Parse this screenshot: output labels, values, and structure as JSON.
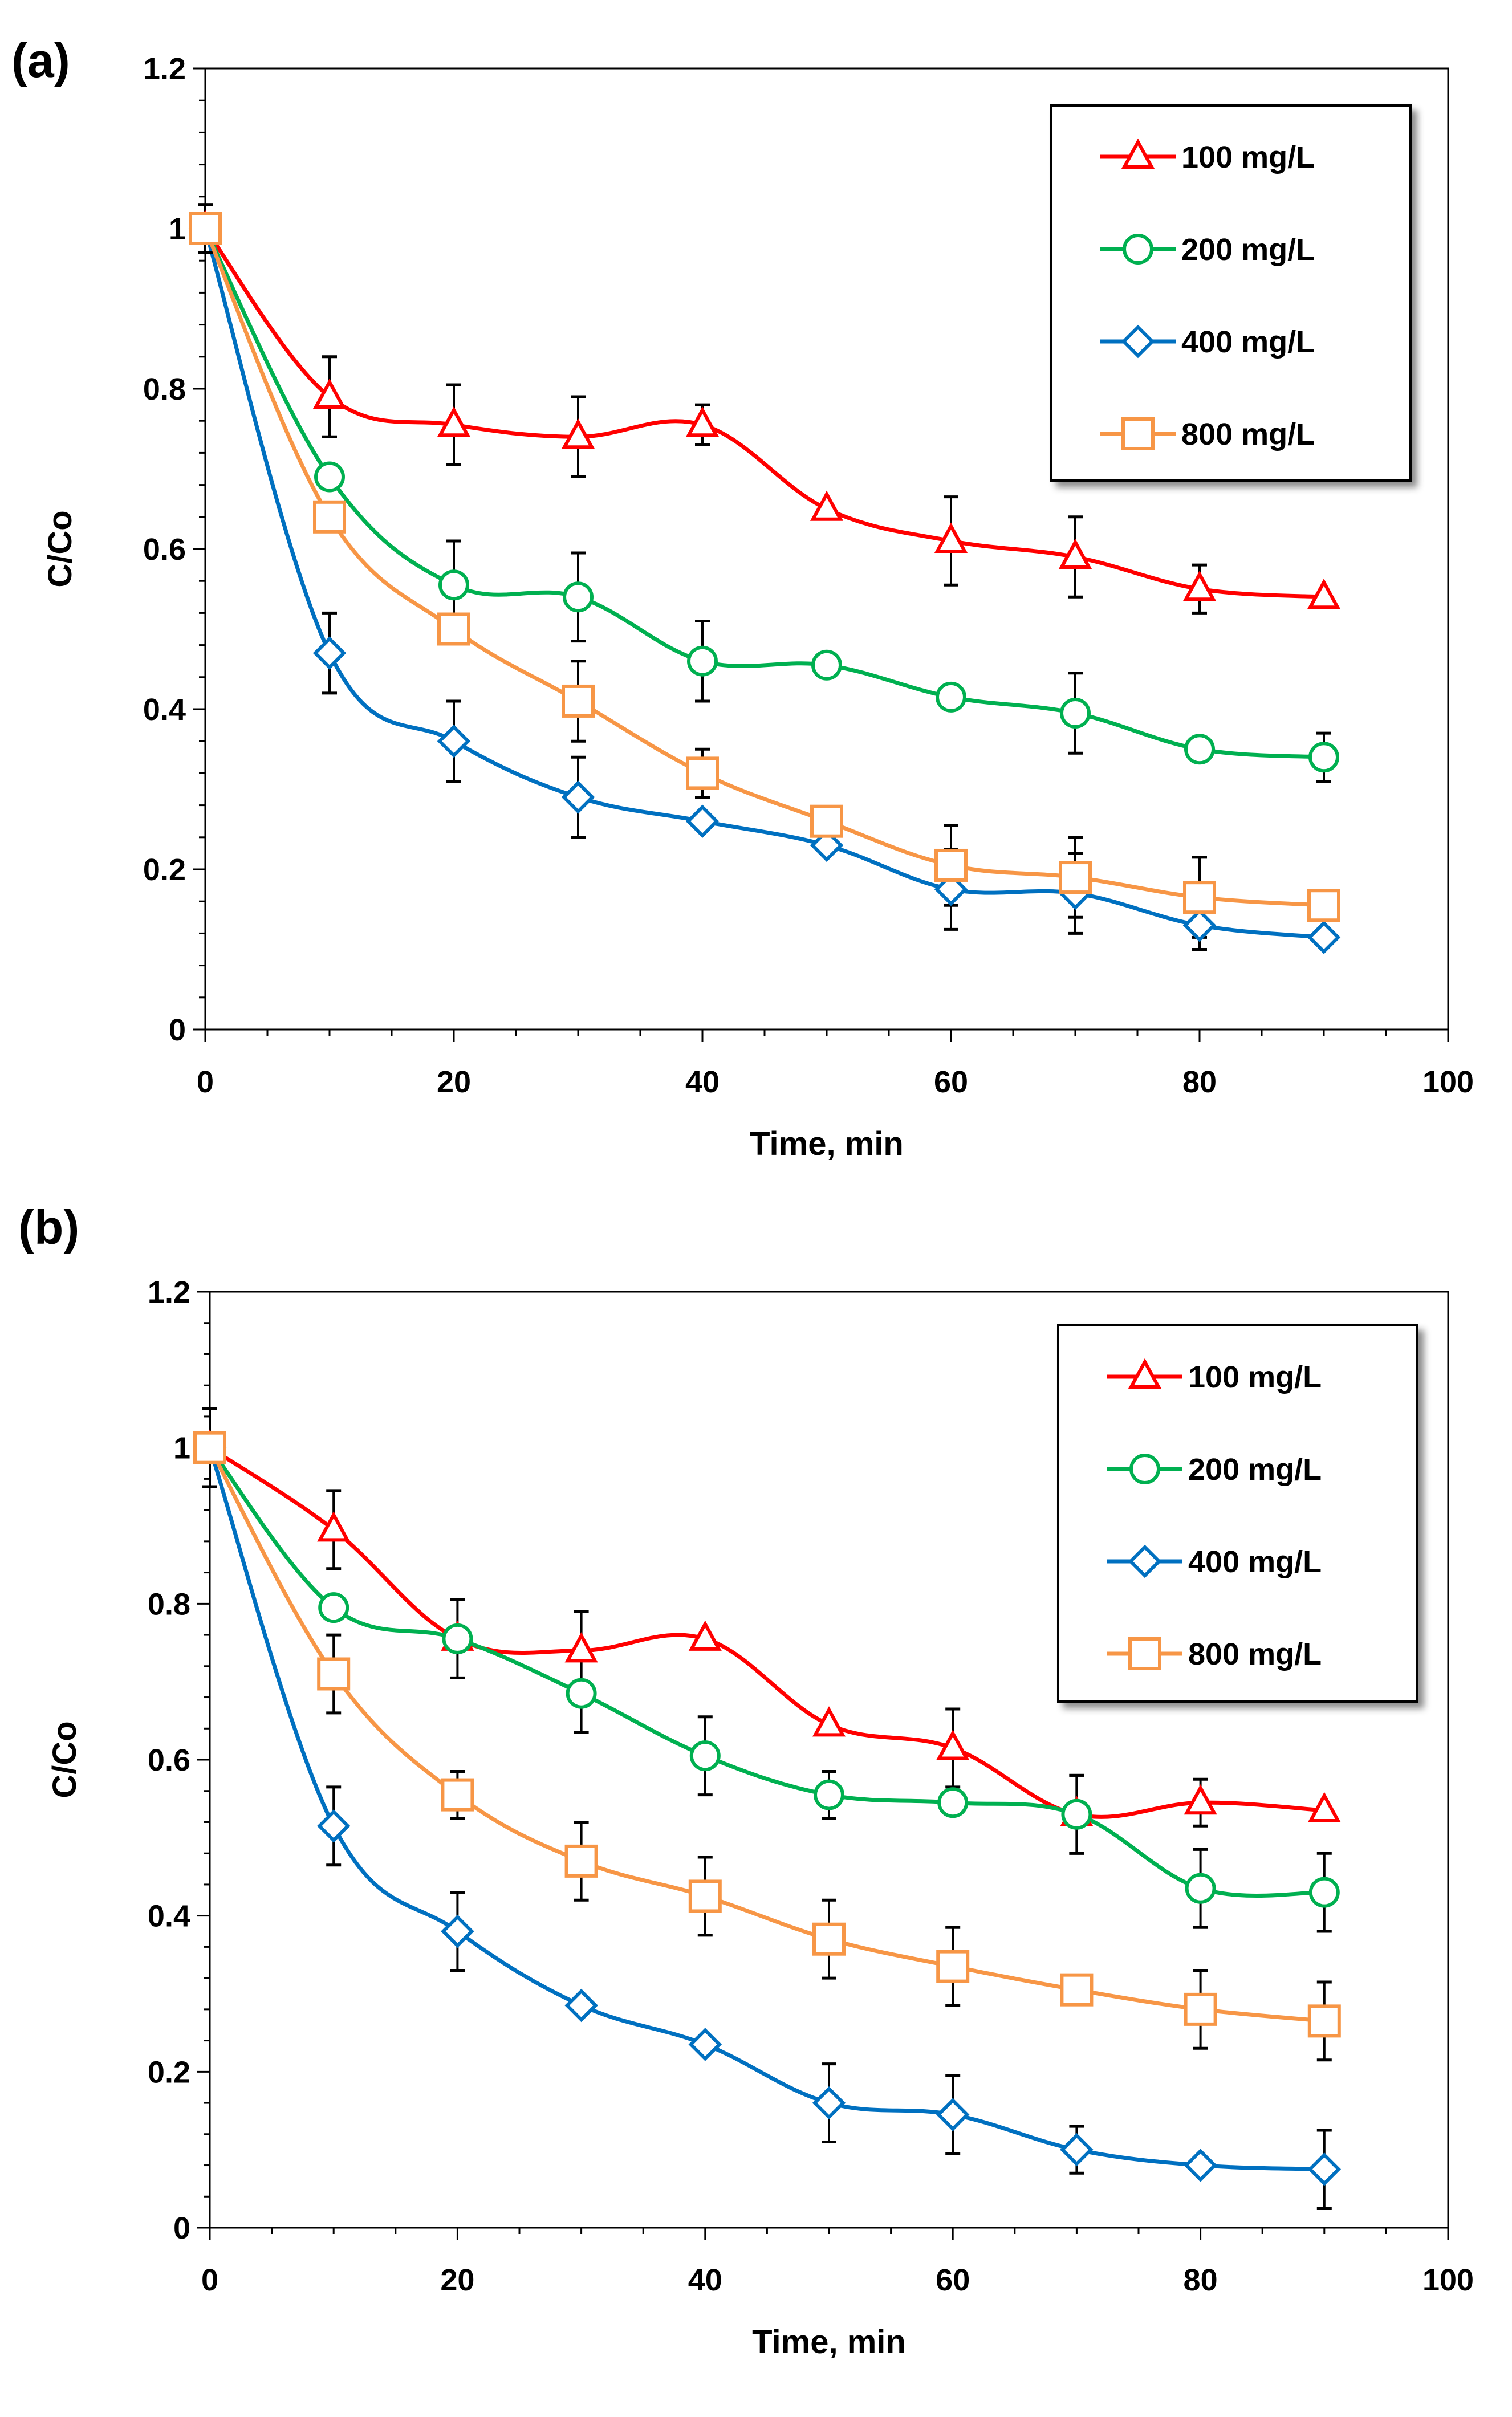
{
  "chart_data": [
    {
      "panel_label": "(a)",
      "type": "line",
      "xlabel": "Time, min",
      "ylabel": "C/Co",
      "xlim": [
        0,
        100
      ],
      "ylim": [
        0,
        1.2
      ],
      "x_ticks": [
        "0",
        "20",
        "40",
        "60",
        "80",
        "100"
      ],
      "y_ticks": [
        "0",
        "0.2",
        "0.4",
        "0.6",
        "0.8",
        "1",
        "1.2"
      ],
      "legend_position": "top-right",
      "x": [
        0,
        10,
        20,
        30,
        40,
        50,
        60,
        70,
        80,
        90
      ],
      "series": [
        {
          "name": "100 mg/L",
          "color": "#ff0000",
          "marker": "triangle",
          "values": [
            1.0,
            0.79,
            0.755,
            0.74,
            0.755,
            0.65,
            0.61,
            0.59,
            0.55,
            0.54
          ],
          "errors": [
            0.03,
            0.05,
            0.05,
            0.05,
            0.025,
            0.0,
            0.055,
            0.05,
            0.03,
            0.0
          ]
        },
        {
          "name": "200 mg/L",
          "color": "#00b050",
          "marker": "circle",
          "values": [
            1.0,
            0.69,
            0.555,
            0.54,
            0.46,
            0.455,
            0.415,
            0.395,
            0.35,
            0.34
          ],
          "errors": [
            0.03,
            0.0,
            0.055,
            0.055,
            0.05,
            0.0,
            0.0,
            0.05,
            0.0,
            0.03
          ]
        },
        {
          "name": "400 mg/L",
          "color": "#0070c0",
          "marker": "diamond",
          "values": [
            1.0,
            0.47,
            0.36,
            0.29,
            0.26,
            0.23,
            0.175,
            0.17,
            0.13,
            0.115
          ],
          "errors": [
            0.03,
            0.05,
            0.05,
            0.05,
            0.0,
            0.0,
            0.05,
            0.05,
            0.03,
            0.0
          ]
        },
        {
          "name": "800 mg/L",
          "color": "#f79646",
          "marker": "square",
          "values": [
            1.0,
            0.64,
            0.5,
            0.41,
            0.32,
            0.26,
            0.205,
            0.19,
            0.165,
            0.155
          ],
          "errors": [
            0.03,
            0.0,
            0.0,
            0.05,
            0.03,
            0.0,
            0.05,
            0.05,
            0.05,
            0.0
          ]
        }
      ]
    },
    {
      "panel_label": "(b)",
      "type": "line",
      "xlabel": "Time, min",
      "ylabel": "C/Co",
      "xlim": [
        0,
        100
      ],
      "ylim": [
        0,
        1.2
      ],
      "x_ticks": [
        "0",
        "20",
        "40",
        "60",
        "80",
        "100"
      ],
      "y_ticks": [
        "0",
        "0.2",
        "0.4",
        "0.6",
        "0.8",
        "1",
        "1.2"
      ],
      "legend_position": "top-right",
      "x": [
        0,
        10,
        20,
        30,
        40,
        50,
        60,
        70,
        80,
        90
      ],
      "series": [
        {
          "name": "100 mg/L",
          "color": "#ff0000",
          "marker": "triangle",
          "values": [
            1.0,
            0.895,
            0.755,
            0.74,
            0.755,
            0.645,
            0.615,
            0.53,
            0.545,
            0.535
          ],
          "errors": [
            0.05,
            0.05,
            0.0,
            0.05,
            0.0,
            0.0,
            0.05,
            0.05,
            0.03,
            0.0
          ]
        },
        {
          "name": "200 mg/L",
          "color": "#00b050",
          "marker": "circle",
          "values": [
            1.0,
            0.795,
            0.755,
            0.685,
            0.605,
            0.555,
            0.545,
            0.53,
            0.435,
            0.43
          ],
          "errors": [
            0.05,
            0.0,
            0.05,
            0.05,
            0.05,
            0.03,
            0.0,
            0.05,
            0.05,
            0.05
          ]
        },
        {
          "name": "400 mg/L",
          "color": "#0070c0",
          "marker": "diamond",
          "values": [
            1.0,
            0.515,
            0.38,
            0.285,
            0.235,
            0.16,
            0.145,
            0.1,
            0.08,
            0.075
          ],
          "errors": [
            0.05,
            0.05,
            0.05,
            0.0,
            0.0,
            0.05,
            0.05,
            0.03,
            0.0,
            0.05
          ]
        },
        {
          "name": "800 mg/L",
          "color": "#f79646",
          "marker": "square",
          "values": [
            1.0,
            0.71,
            0.555,
            0.47,
            0.425,
            0.37,
            0.335,
            0.305,
            0.28,
            0.265
          ],
          "errors": [
            0.05,
            0.05,
            0.03,
            0.05,
            0.05,
            0.05,
            0.05,
            0.0,
            0.05,
            0.05
          ]
        }
      ]
    }
  ]
}
